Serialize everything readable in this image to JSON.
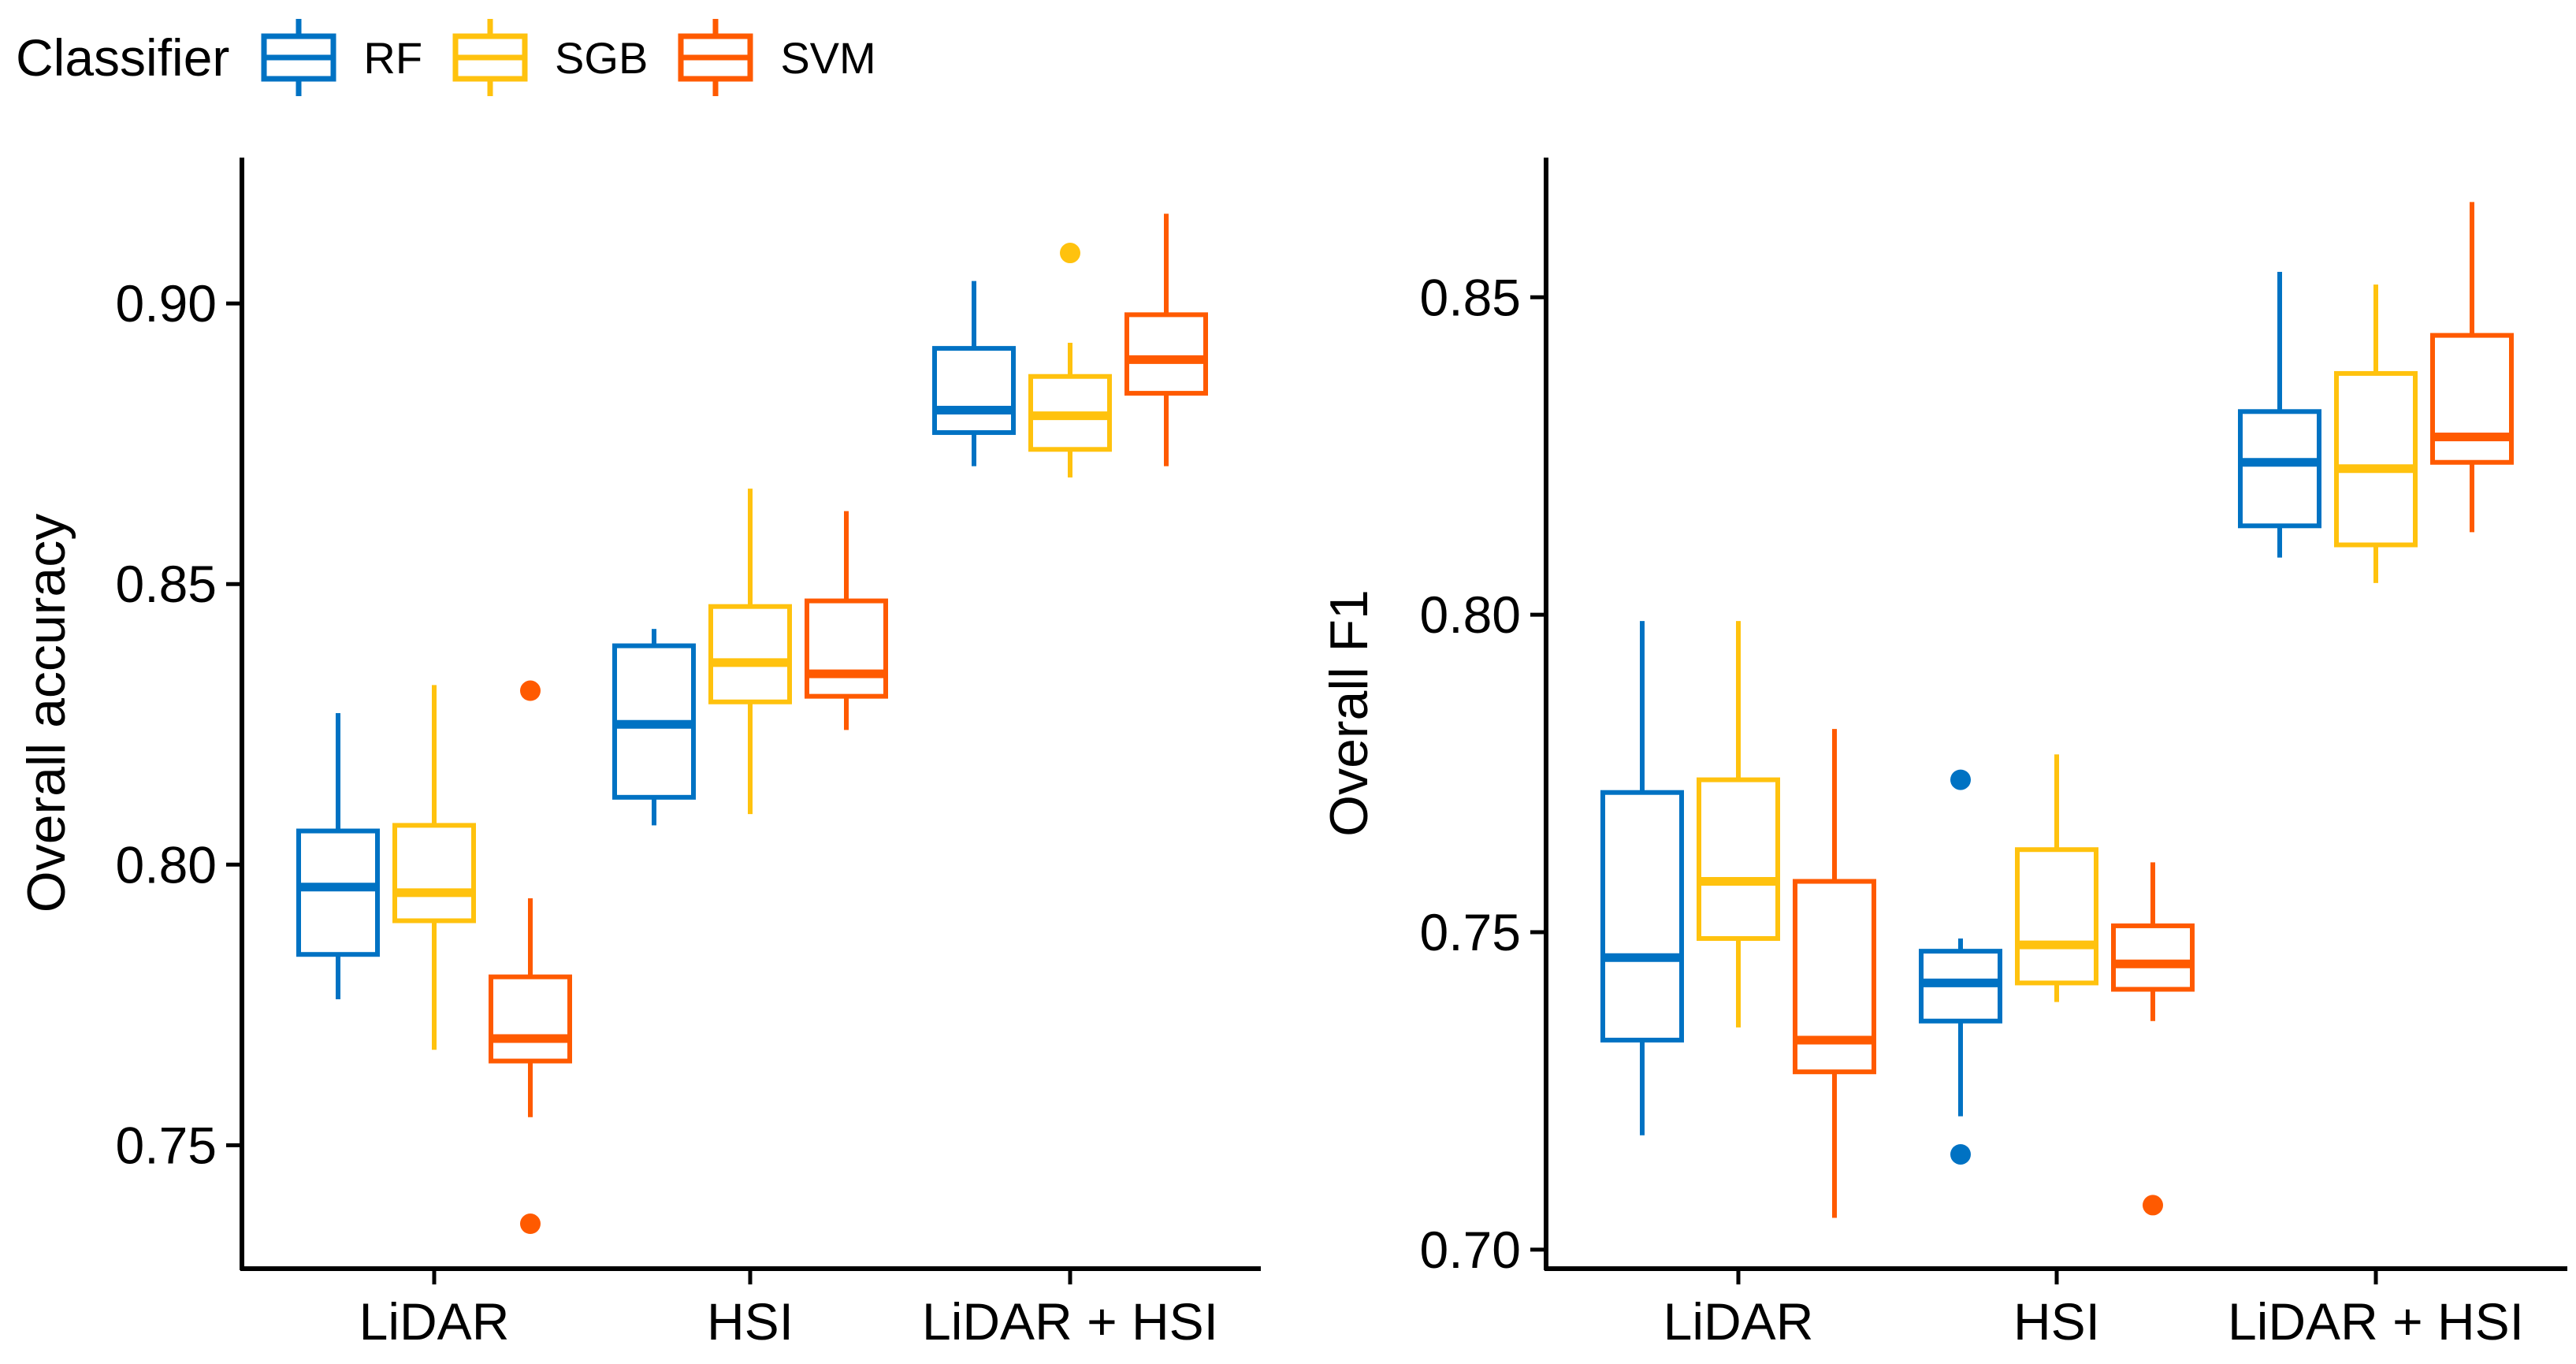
{
  "legend": {
    "title": "Classifier",
    "items": [
      {
        "label": "RF",
        "color": "#0072C3"
      },
      {
        "label": "SGB",
        "color": "#FFC20E"
      },
      {
        "label": "SVM",
        "color": "#FF5A00"
      }
    ]
  },
  "chart_data": [
    {
      "type": "boxplot",
      "ylabel": "Overall accuracy",
      "xlabel": "",
      "categories": [
        "LiDAR",
        "HSI",
        "LiDAR + HSI"
      ],
      "yticks": [
        0.75,
        0.8,
        0.85,
        0.9
      ],
      "ytick_labels": [
        "0.75",
        "0.80",
        "0.85",
        "0.90"
      ],
      "ylim": [
        0.728,
        0.926
      ],
      "series": [
        {
          "name": "RF",
          "boxes": [
            {
              "category": "LiDAR",
              "whisker_low": 0.776,
              "q1": 0.784,
              "median": 0.796,
              "q3": 0.806,
              "whisker_high": 0.827,
              "outliers": []
            },
            {
              "category": "HSI",
              "whisker_low": 0.807,
              "q1": 0.812,
              "median": 0.825,
              "q3": 0.839,
              "whisker_high": 0.842,
              "outliers": []
            },
            {
              "category": "LiDAR + HSI",
              "whisker_low": 0.871,
              "q1": 0.877,
              "median": 0.881,
              "q3": 0.892,
              "whisker_high": 0.904,
              "outliers": []
            }
          ]
        },
        {
          "name": "SGB",
          "boxes": [
            {
              "category": "LiDAR",
              "whisker_low": 0.767,
              "q1": 0.79,
              "median": 0.795,
              "q3": 0.807,
              "whisker_high": 0.832,
              "outliers": []
            },
            {
              "category": "HSI",
              "whisker_low": 0.809,
              "q1": 0.829,
              "median": 0.836,
              "q3": 0.846,
              "whisker_high": 0.867,
              "outliers": []
            },
            {
              "category": "LiDAR + HSI",
              "whisker_low": 0.869,
              "q1": 0.874,
              "median": 0.88,
              "q3": 0.887,
              "whisker_high": 0.893,
              "outliers": [
                0.909
              ]
            }
          ]
        },
        {
          "name": "SVM",
          "boxes": [
            {
              "category": "LiDAR",
              "whisker_low": 0.755,
              "q1": 0.765,
              "median": 0.769,
              "q3": 0.78,
              "whisker_high": 0.794,
              "outliers": [
                0.736,
                0.831
              ]
            },
            {
              "category": "HSI",
              "whisker_low": 0.824,
              "q1": 0.83,
              "median": 0.834,
              "q3": 0.847,
              "whisker_high": 0.863,
              "outliers": []
            },
            {
              "category": "LiDAR + HSI",
              "whisker_low": 0.871,
              "q1": 0.884,
              "median": 0.89,
              "q3": 0.898,
              "whisker_high": 0.916,
              "outliers": []
            }
          ]
        }
      ]
    },
    {
      "type": "boxplot",
      "ylabel": "Overall F1",
      "xlabel": "",
      "categories": [
        "LiDAR",
        "HSI",
        "LiDAR + HSI"
      ],
      "yticks": [
        0.7,
        0.75,
        0.8,
        0.85
      ],
      "ytick_labels": [
        "0.70",
        "0.75",
        "0.80",
        "0.85"
      ],
      "ylim": [
        0.697,
        0.872
      ],
      "series": [
        {
          "name": "RF",
          "boxes": [
            {
              "category": "LiDAR",
              "whisker_low": 0.718,
              "q1": 0.733,
              "median": 0.746,
              "q3": 0.772,
              "whisker_high": 0.799,
              "outliers": []
            },
            {
              "category": "HSI",
              "whisker_low": 0.721,
              "q1": 0.736,
              "median": 0.742,
              "q3": 0.747,
              "whisker_high": 0.749,
              "outliers": [
                0.715,
                0.774
              ]
            },
            {
              "category": "LiDAR + HSI",
              "whisker_low": 0.809,
              "q1": 0.814,
              "median": 0.824,
              "q3": 0.832,
              "whisker_high": 0.854,
              "outliers": []
            }
          ]
        },
        {
          "name": "SGB",
          "boxes": [
            {
              "category": "LiDAR",
              "whisker_low": 0.735,
              "q1": 0.749,
              "median": 0.758,
              "q3": 0.774,
              "whisker_high": 0.799,
              "outliers": []
            },
            {
              "category": "HSI",
              "whisker_low": 0.739,
              "q1": 0.742,
              "median": 0.748,
              "q3": 0.763,
              "whisker_high": 0.778,
              "outliers": []
            },
            {
              "category": "LiDAR + HSI",
              "whisker_low": 0.805,
              "q1": 0.811,
              "median": 0.823,
              "q3": 0.838,
              "whisker_high": 0.852,
              "outliers": []
            }
          ]
        },
        {
          "name": "SVM",
          "boxes": [
            {
              "category": "LiDAR",
              "whisker_low": 0.705,
              "q1": 0.728,
              "median": 0.733,
              "q3": 0.758,
              "whisker_high": 0.782,
              "outliers": []
            },
            {
              "category": "HSI",
              "whisker_low": 0.736,
              "q1": 0.741,
              "median": 0.745,
              "q3": 0.751,
              "whisker_high": 0.761,
              "outliers": [
                0.707
              ]
            },
            {
              "category": "LiDAR + HSI",
              "whisker_low": 0.813,
              "q1": 0.824,
              "median": 0.828,
              "q3": 0.844,
              "whisker_high": 0.865,
              "outliers": []
            }
          ]
        }
      ]
    }
  ]
}
